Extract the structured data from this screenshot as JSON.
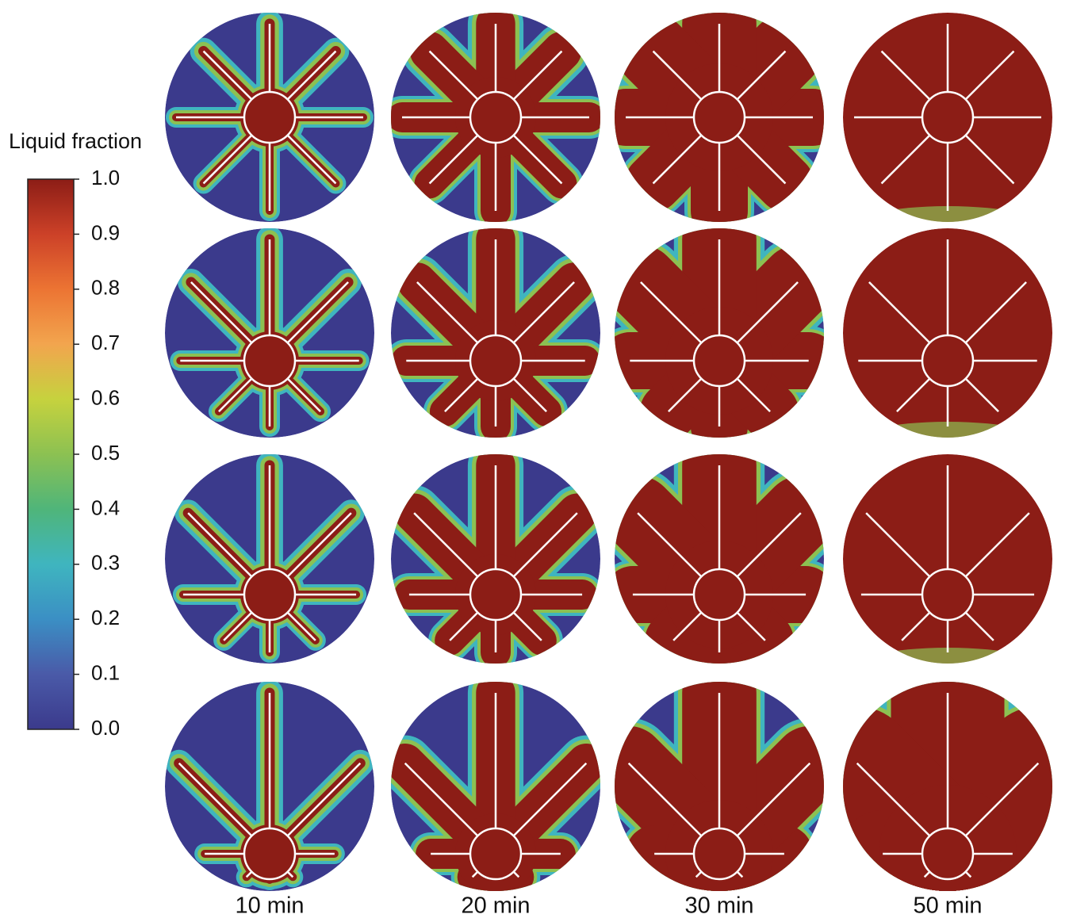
{
  "chart_data": {
    "type": "colormap-grid",
    "colorbar": {
      "title": "Liquid fraction",
      "lim": [
        0,
        1
      ],
      "ticks": [
        {
          "value": 0,
          "label": "0.0"
        },
        0.1,
        0.2,
        0.3,
        0.4,
        0.5,
        0.6,
        0.7,
        0.8,
        0.9,
        {
          "value": 1,
          "label": "1.0"
        }
      ],
      "colors": [
        "#3b3a8c",
        "#4a5aa8",
        "#3b8fc4",
        "#3fb5bf",
        "#4fb57a",
        "#8cc152",
        "#c6d23e",
        "#f2a54e",
        "#ec7433",
        "#cc4128",
        "#8c1d16"
      ]
    },
    "columns": [
      "10 min",
      "20 min",
      "30 min",
      "50 min"
    ]
  }
}
